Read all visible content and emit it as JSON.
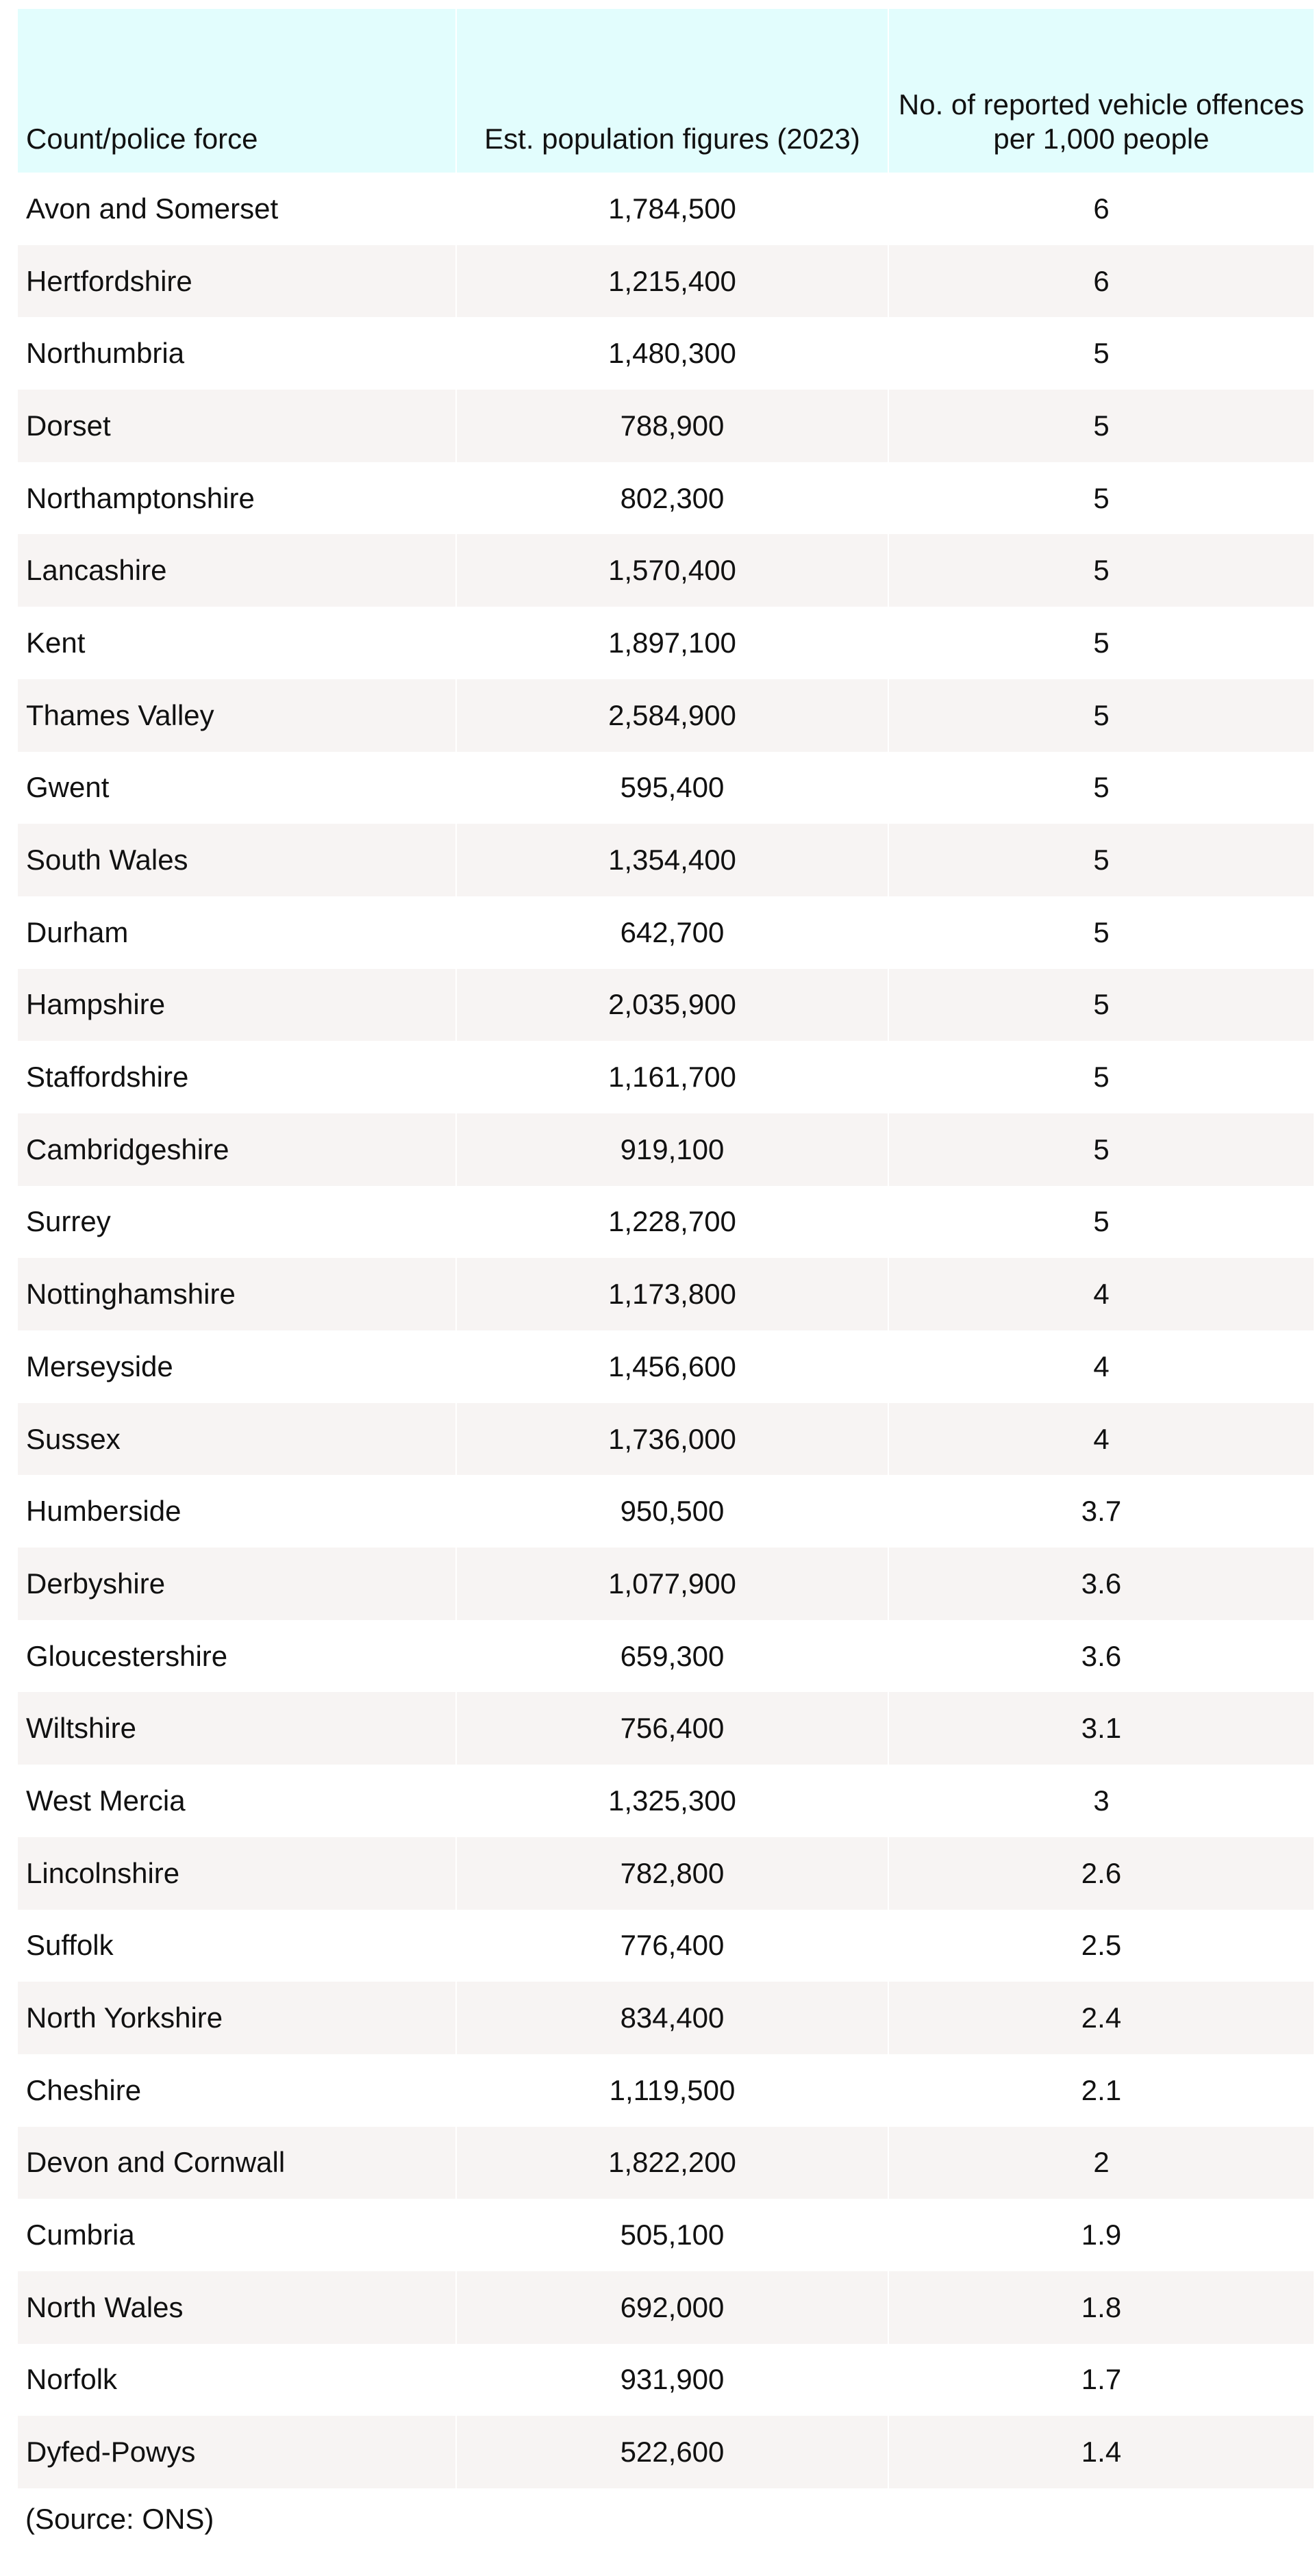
{
  "table": {
    "headers": [
      "Count/police force",
      "Est. population figures (2023)",
      "No. of reported vehicle offences per 1,000 people"
    ],
    "header_colors": {
      "header_bg": "#e2fdfd",
      "stripe_bg": "#f7f4f3"
    },
    "rows": [
      [
        "Avon and Somerset",
        "1,784,500",
        "6"
      ],
      [
        "Hertfordshire",
        "1,215,400",
        "6"
      ],
      [
        "Northumbria",
        "1,480,300",
        "5"
      ],
      [
        "Dorset",
        "788,900",
        "5"
      ],
      [
        "Northamptonshire",
        "802,300",
        "5"
      ],
      [
        "Lancashire",
        "1,570,400",
        "5"
      ],
      [
        "Kent",
        "1,897,100",
        "5"
      ],
      [
        "Thames Valley",
        "2,584,900",
        "5"
      ],
      [
        "Gwent",
        "595,400",
        "5"
      ],
      [
        "South Wales",
        "1,354,400",
        "5"
      ],
      [
        "Durham",
        "642,700",
        "5"
      ],
      [
        "Hampshire",
        "2,035,900",
        "5"
      ],
      [
        "Staffordshire",
        "1,161,700",
        "5"
      ],
      [
        "Cambridgeshire",
        "919,100",
        "5"
      ],
      [
        "Surrey",
        "1,228,700",
        "5"
      ],
      [
        "Nottinghamshire",
        "1,173,800",
        "4"
      ],
      [
        "Merseyside",
        "1,456,600",
        "4"
      ],
      [
        "Sussex",
        "1,736,000",
        "4"
      ],
      [
        "Humberside",
        "950,500",
        "3.7"
      ],
      [
        "Derbyshire",
        "1,077,900",
        "3.6"
      ],
      [
        "Gloucestershire",
        "659,300",
        "3.6"
      ],
      [
        "Wiltshire",
        "756,400",
        "3.1"
      ],
      [
        "West Mercia",
        "1,325,300",
        "3"
      ],
      [
        "Lincolnshire",
        "782,800",
        "2.6"
      ],
      [
        "Suffolk",
        "776,400",
        "2.5"
      ],
      [
        "North Yorkshire",
        "834,400",
        "2.4"
      ],
      [
        "Cheshire",
        "1,119,500",
        "2.1"
      ],
      [
        "Devon and Cornwall",
        "1,822,200",
        "2"
      ],
      [
        "Cumbria",
        "505,100",
        "1.9"
      ],
      [
        "North Wales",
        "692,000",
        "1.8"
      ],
      [
        "Norfolk",
        "931,900",
        "1.7"
      ],
      [
        "Dyfed-Powys",
        "522,600",
        "1.4"
      ]
    ]
  },
  "source": "(Source: ONS)"
}
